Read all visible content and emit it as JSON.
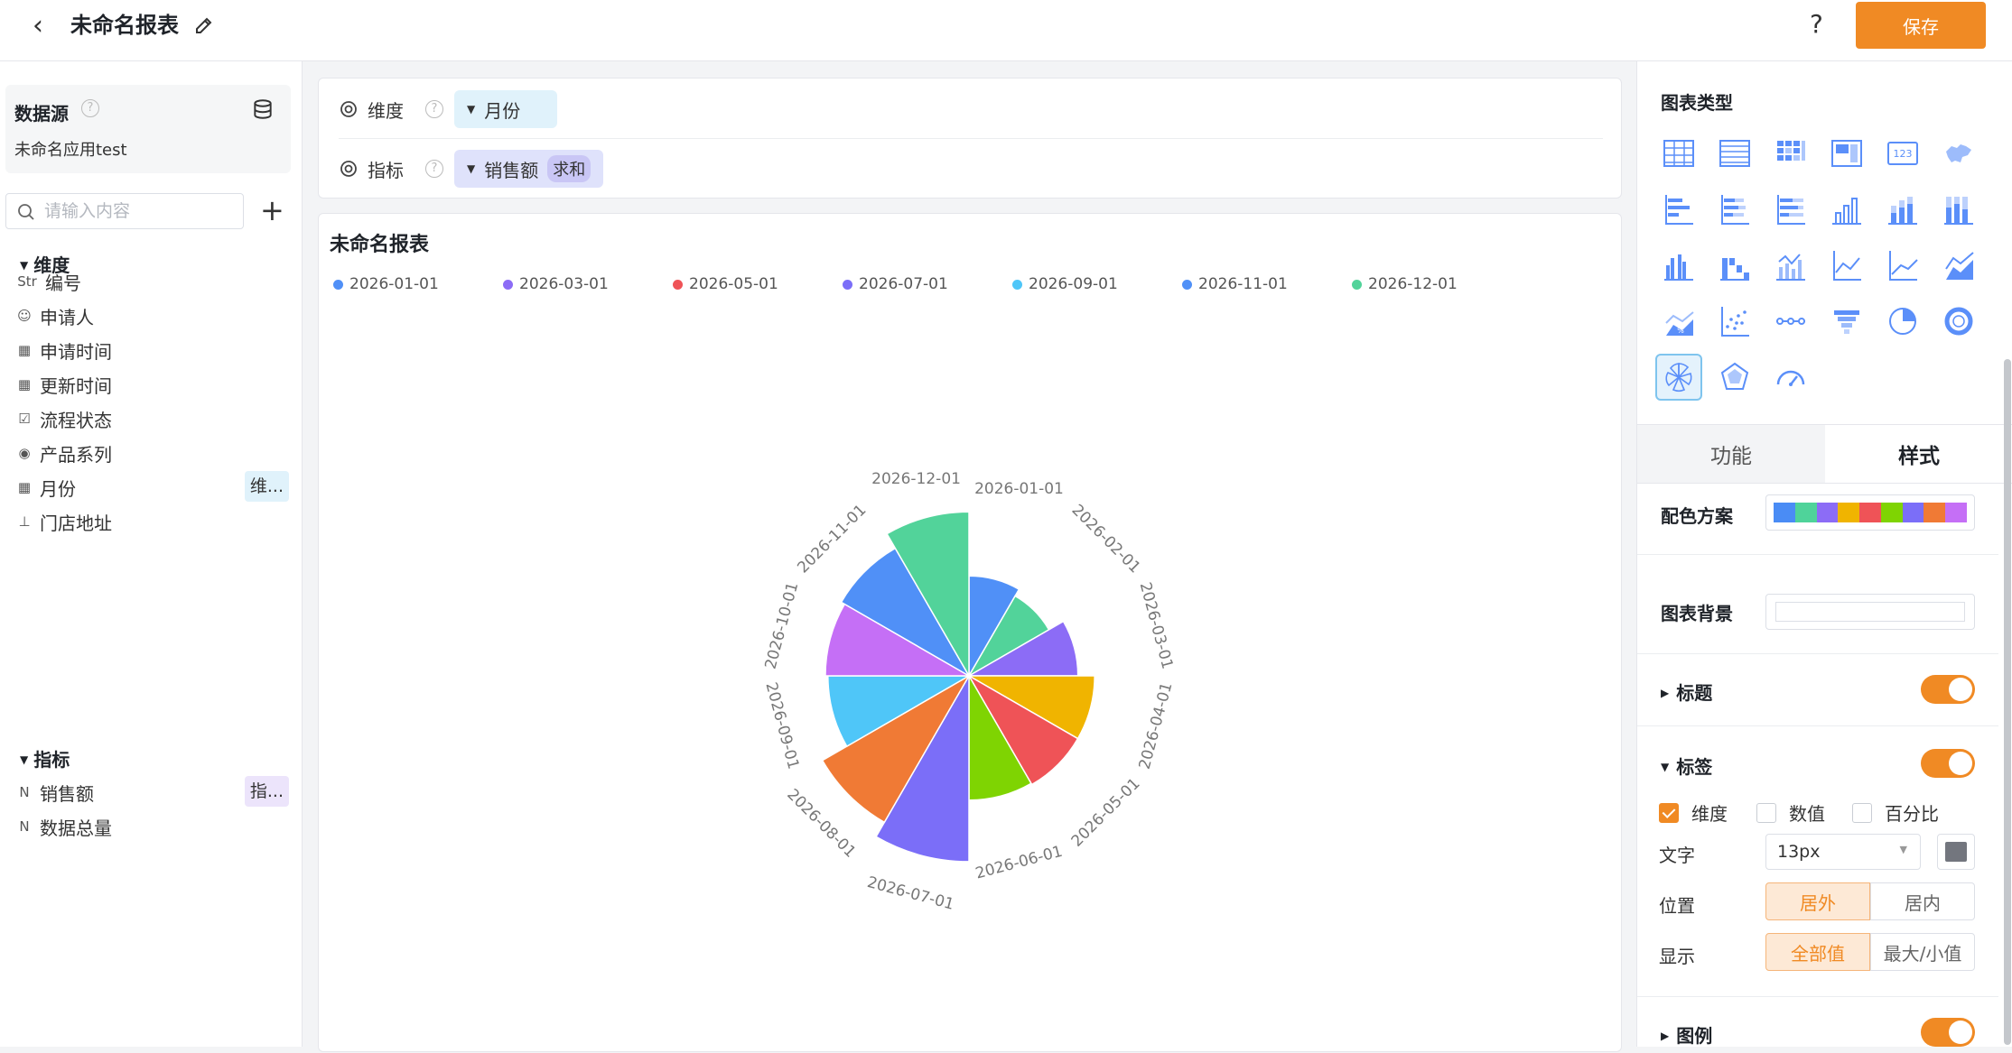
{
  "header": {
    "title": "未命名报表",
    "save_label": "保存",
    "help": "?"
  },
  "sidebar": {
    "datasource_title": "数据源",
    "datasource_app": "未命名应用test",
    "search_placeholder": "请输入内容",
    "dim_section": "维度",
    "metric_section": "指标",
    "dimensions": [
      {
        "icon": "Str",
        "label": "编号"
      },
      {
        "icon": "user-icon",
        "label": "申请人"
      },
      {
        "icon": "calendar-icon",
        "label": "申请时间"
      },
      {
        "icon": "calendar-icon",
        "label": "更新时间"
      },
      {
        "icon": "checkbox-icon",
        "label": "流程状态"
      },
      {
        "icon": "radio-icon",
        "label": "产品系列"
      },
      {
        "icon": "calendar-icon",
        "label": "月份",
        "tag": "维..."
      },
      {
        "icon": "location-icon",
        "label": "门店地址"
      }
    ],
    "metrics": [
      {
        "icon": "number-icon",
        "label": "销售额",
        "tag": "指..."
      },
      {
        "icon": "number-icon",
        "label": "数据总量"
      }
    ]
  },
  "config": {
    "dimension_label": "维度",
    "dimension_value": "月份",
    "metric_label": "指标",
    "metric_value": "销售额",
    "metric_agg": "求和"
  },
  "chart": {
    "title": "未命名报表"
  },
  "chart_data": {
    "type": "pie",
    "subtype": "rose",
    "title": "未命名报表",
    "legend_position": "top-left",
    "legend": [
      "2026-01-01",
      "2026-03-01",
      "2026-05-01",
      "2026-07-01",
      "2026-09-01",
      "2026-11-01",
      "2026-12-01"
    ],
    "categories": [
      "2026-01-01",
      "2026-02-01",
      "2026-03-01",
      "2026-04-01",
      "2026-05-01",
      "2026-06-01",
      "2026-07-01",
      "2026-08-01",
      "2026-09-01",
      "2026-10-01",
      "2026-11-01",
      "2026-12-01"
    ],
    "values": [
      0.78,
      0.72,
      0.85,
      0.98,
      0.98,
      0.97,
      1.45,
      1.32,
      1.1,
      1.12,
      1.15,
      1.28
    ],
    "colors": [
      "#5090f7",
      "#52d39a",
      "#8c6cf6",
      "#f0b400",
      "#ef5357",
      "#7fd402",
      "#7b6ef8",
      "#f07a35",
      "#4fc6f8",
      "#c56ff6",
      "#5090f7",
      "#52d39a"
    ],
    "legend_colors": [
      "#5090f7",
      "#8c6cf6",
      "#ef5357",
      "#7b6ef8",
      "#4fc6f8",
      "#5090f7",
      "#52d39a"
    ]
  },
  "panel": {
    "chart_type_title": "图表类型",
    "tab_function": "功能",
    "tab_style": "样式",
    "color_scheme_label": "配色方案",
    "palette": [
      "#4a8cf5",
      "#4fd39a",
      "#8c6cf6",
      "#f0b400",
      "#ef5357",
      "#7fd402",
      "#7b6ef8",
      "#f07a35",
      "#c56ff6"
    ],
    "chart_bg_label": "图表背景",
    "title_section": "标题",
    "label_section": "标签",
    "legend_section": "图例",
    "check_dimension": "维度",
    "check_value": "数值",
    "check_percent": "百分比",
    "text_label": "文字",
    "font_size": "13px",
    "position_label": "位置",
    "pos_outside": "居外",
    "pos_inside": "居内",
    "display_label": "显示",
    "disp_all": "全部值",
    "disp_minmax": "最大/小值"
  }
}
